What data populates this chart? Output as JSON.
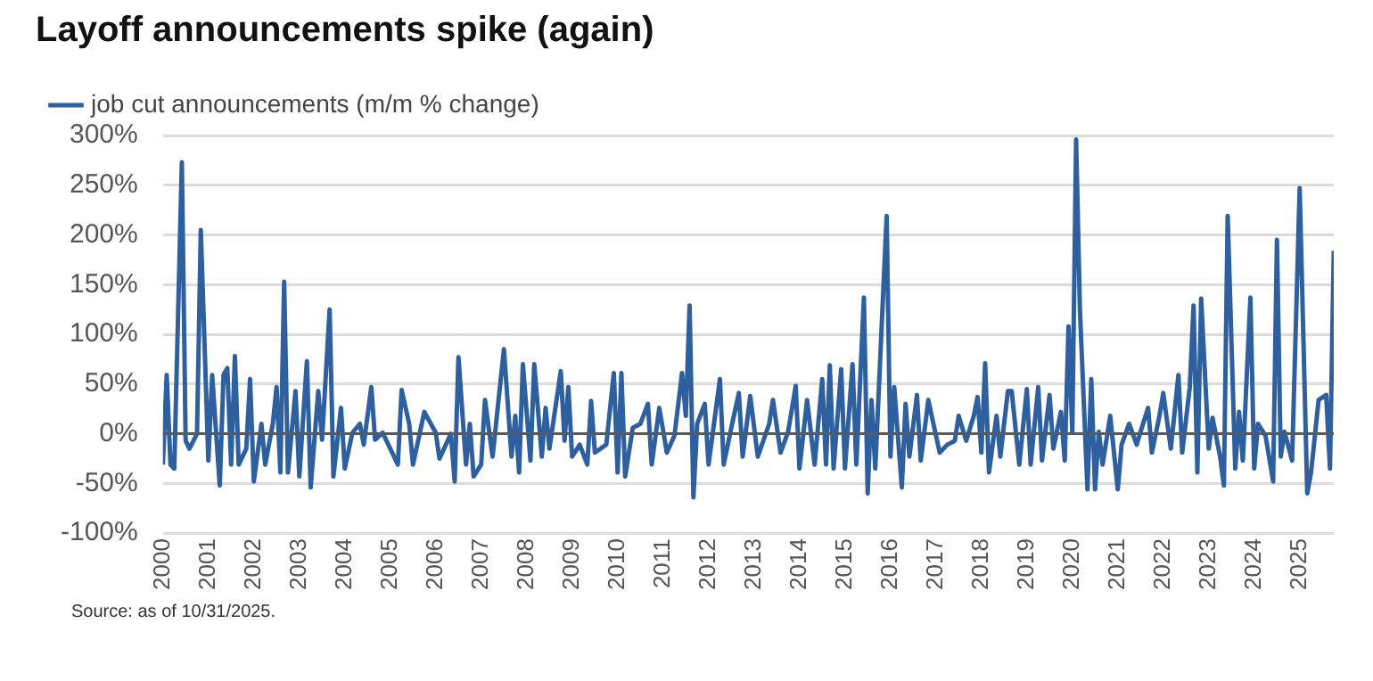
{
  "chart_data": {
    "type": "line",
    "title": "Layoff announcements spike (again)",
    "annotations": [
      "Source: as of 10/31/2025."
    ],
    "legend": "top left",
    "grid": "y",
    "xlim": [
      "2000-01",
      "2025-10"
    ],
    "xticks": [
      "2000",
      "2001",
      "2002",
      "2003",
      "2004",
      "2005",
      "2006",
      "2007",
      "2008",
      "2009",
      "2010",
      "2011",
      "2012",
      "2013",
      "2014",
      "2015",
      "2016",
      "2017",
      "2018",
      "2019",
      "2020",
      "2021",
      "2022",
      "2023",
      "2024",
      "2025"
    ],
    "ylim": [
      -100,
      300
    ],
    "yticks": [
      {
        "value": -100,
        "label": "-100%"
      },
      {
        "value": -50,
        "label": "-50%"
      },
      {
        "value": 0,
        "label": "0%"
      },
      {
        "value": 50,
        "label": "50%"
      },
      {
        "value": 100,
        "label": "100%"
      },
      {
        "value": 150,
        "label": "150%"
      },
      {
        "value": 200,
        "label": "200%"
      },
      {
        "value": 250,
        "label": "250%"
      },
      {
        "value": 300,
        "label": "300%"
      }
    ],
    "ref_lines": [
      {
        "axis": "y",
        "value": 0,
        "color": "#595959"
      }
    ],
    "series": [
      {
        "name": "job cut announcements (m/m % change)",
        "color": "#2e5f9e",
        "x": [
          "2000-01",
          "2000-02",
          "2000-03",
          "2000-04",
          "2000-06",
          "2000-07",
          "2000-08",
          "2000-10",
          "2000-11",
          "2001-01",
          "2001-02",
          "2001-04",
          "2001-05",
          "2001-06",
          "2001-07",
          "2001-08",
          "2001-09",
          "2001-11",
          "2001-12",
          "2002-01",
          "2002-03",
          "2002-04",
          "2002-06",
          "2002-07",
          "2002-08",
          "2002-09",
          "2002-10",
          "2002-12",
          "2003-01",
          "2003-03",
          "2003-04",
          "2003-06",
          "2003-07",
          "2003-09",
          "2003-10",
          "2003-12",
          "2004-01",
          "2004-03",
          "2004-05",
          "2004-06",
          "2004-08",
          "2004-09",
          "2004-11",
          "2005-01",
          "2005-03",
          "2005-04",
          "2005-06",
          "2005-07",
          "2005-10",
          "2006-01",
          "2006-02",
          "2006-05",
          "2006-06",
          "2006-07",
          "2006-09",
          "2006-10",
          "2006-11",
          "2007-01",
          "2007-02",
          "2007-04",
          "2007-07",
          "2007-09",
          "2007-10",
          "2007-11",
          "2007-12",
          "2008-02",
          "2008-03",
          "2008-05",
          "2008-06",
          "2008-07",
          "2008-10",
          "2008-11",
          "2008-12",
          "2009-01",
          "2009-03",
          "2009-05",
          "2009-06",
          "2009-07",
          "2009-10",
          "2009-12",
          "2010-01",
          "2010-02",
          "2010-03",
          "2010-05",
          "2010-07",
          "2010-09",
          "2010-10",
          "2010-12",
          "2011-02",
          "2011-04",
          "2011-06",
          "2011-07",
          "2011-08",
          "2011-09",
          "2011-10",
          "2011-12",
          "2012-01",
          "2012-04",
          "2012-05",
          "2012-07",
          "2012-09",
          "2012-10",
          "2012-12",
          "2013-02",
          "2013-05",
          "2013-06",
          "2013-08",
          "2013-10",
          "2013-12",
          "2014-01",
          "2014-03",
          "2014-05",
          "2014-07",
          "2014-08",
          "2014-09",
          "2014-10",
          "2014-12",
          "2015-01",
          "2015-03",
          "2015-04",
          "2015-06",
          "2015-07",
          "2015-08",
          "2015-09",
          "2015-12",
          "2016-01",
          "2016-02",
          "2016-04",
          "2016-05",
          "2016-06",
          "2016-08",
          "2016-09",
          "2016-11",
          "2016-12",
          "2017-02",
          "2017-04",
          "2017-06",
          "2017-07",
          "2017-09",
          "2017-11",
          "2017-12",
          "2018-01",
          "2018-02",
          "2018-03",
          "2018-05",
          "2018-06",
          "2018-08",
          "2018-09",
          "2018-11",
          "2019-01",
          "2019-02",
          "2019-04",
          "2019-05",
          "2019-07",
          "2019-08",
          "2019-10",
          "2019-11",
          "2019-12",
          "2020-01",
          "2020-02",
          "2020-03",
          "2020-05",
          "2020-06",
          "2020-07",
          "2020-08",
          "2020-09",
          "2020-11",
          "2021-01",
          "2021-02",
          "2021-04",
          "2021-06",
          "2021-07",
          "2021-09",
          "2021-10",
          "2021-12",
          "2022-01",
          "2022-03",
          "2022-05",
          "2022-06",
          "2022-08",
          "2022-09",
          "2022-10",
          "2022-11",
          "2023-01",
          "2023-02",
          "2023-04",
          "2023-05",
          "2023-06",
          "2023-08",
          "2023-09",
          "2023-10",
          "2023-12",
          "2024-01",
          "2024-02",
          "2024-04",
          "2024-06",
          "2024-07",
          "2024-08",
          "2024-09",
          "2024-11",
          "2025-01",
          "2025-03",
          "2025-04",
          "2025-06",
          "2025-08",
          "2025-09",
          "2025-10"
        ],
        "values": [
          -31,
          59,
          -31,
          -35,
          273,
          -7,
          -15,
          0,
          205,
          -27,
          59,
          -52,
          59,
          66,
          -31,
          78,
          -31,
          -15,
          55,
          -48,
          10,
          -31,
          10,
          47,
          -39,
          153,
          -39,
          43,
          -43,
          73,
          -54,
          43,
          -6,
          125,
          -43,
          26,
          -35,
          1,
          10,
          -11,
          47,
          -6,
          1,
          -15,
          -31,
          44,
          10,
          -31,
          22,
          1,
          -25,
          0,
          -48,
          77,
          -31,
          10,
          -43,
          -31,
          34,
          -23,
          85,
          -23,
          18,
          -39,
          70,
          -27,
          70,
          -23,
          26,
          -15,
          63,
          -7,
          47,
          -23,
          -11,
          -31,
          33,
          -19,
          -11,
          61,
          -39,
          61,
          -43,
          6,
          10,
          30,
          -31,
          26,
          -19,
          -2,
          61,
          18,
          129,
          -64,
          10,
          30,
          -31,
          55,
          -31,
          6,
          41,
          -23,
          38,
          -23,
          10,
          34,
          -19,
          2,
          48,
          -35,
          34,
          -31,
          55,
          -31,
          69,
          -35,
          65,
          -35,
          70,
          -31,
          137,
          -60,
          34,
          -35,
          219,
          -23,
          47,
          -54,
          30,
          -23,
          39,
          -27,
          34,
          16,
          -19,
          -11,
          -7,
          18,
          -7,
          18,
          37,
          -19,
          71,
          -39,
          18,
          -23,
          43,
          43,
          -31,
          45,
          -31,
          47,
          -27,
          39,
          -15,
          22,
          -27,
          108,
          2,
          296,
          125,
          -56,
          55,
          -56,
          2,
          -31,
          18,
          -56,
          -11,
          10,
          -11,
          2,
          26,
          -19,
          18,
          41,
          -15,
          59,
          -19,
          47,
          129,
          -39,
          136,
          -15,
          16,
          -23,
          -52,
          219,
          -35,
          22,
          -27,
          137,
          -35,
          10,
          -2,
          -48,
          195,
          -23,
          2,
          -27,
          247,
          -60,
          -39,
          34,
          39,
          -35,
          184
        ]
      }
    ]
  }
}
